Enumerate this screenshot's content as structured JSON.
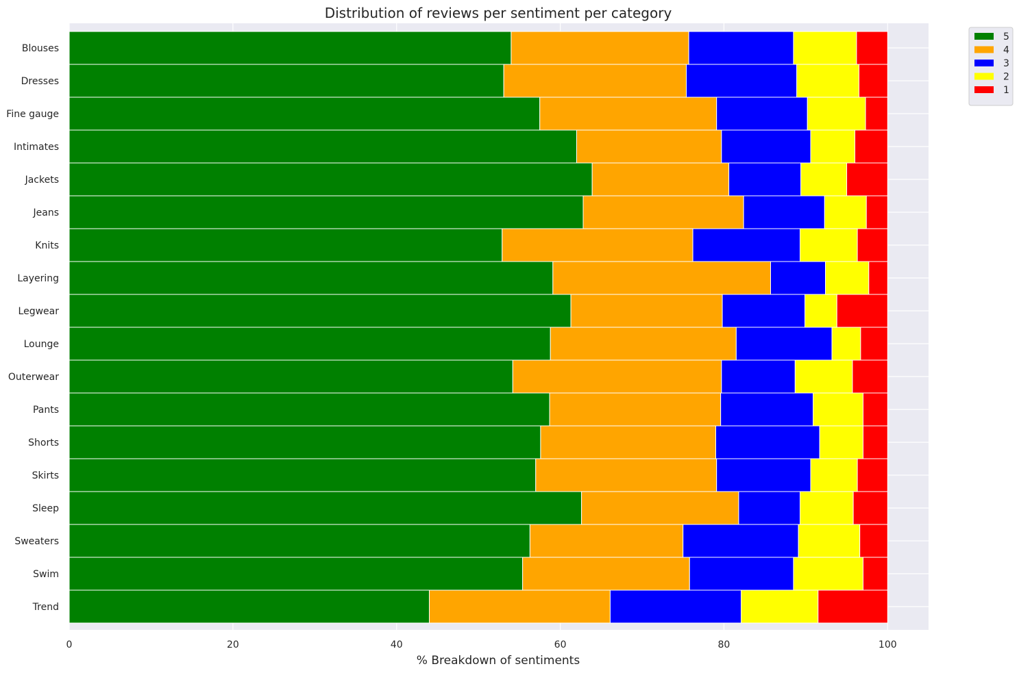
{
  "chart_data": {
    "type": "bar",
    "orientation": "horizontal",
    "stacked": true,
    "title": "Distribution of reviews per sentiment per category",
    "xlabel": "% Breakdown of sentiments",
    "ylabel": "",
    "xlim": [
      0,
      105
    ],
    "xticks": [
      0,
      20,
      40,
      60,
      80,
      100
    ],
    "grid": true,
    "legend_position": "outside-top-right",
    "categories": [
      "Blouses",
      "Dresses",
      "Fine gauge",
      "Intimates",
      "Jackets",
      "Jeans",
      "Knits",
      "Layering",
      "Legwear",
      "Lounge",
      "Outerwear",
      "Pants",
      "Shorts",
      "Skirts",
      "Sleep",
      "Sweaters",
      "Swim",
      "Trend"
    ],
    "series": [
      {
        "name": "5",
        "color": "#008000",
        "values": [
          54.0,
          53.1,
          57.5,
          62.0,
          63.9,
          62.8,
          52.9,
          59.1,
          61.3,
          58.8,
          54.2,
          58.7,
          57.6,
          57.0,
          62.6,
          56.3,
          55.4,
          44.0
        ]
      },
      {
        "name": "4",
        "color": "#ffa500",
        "values": [
          21.7,
          22.3,
          21.6,
          17.7,
          16.7,
          19.6,
          23.3,
          26.6,
          18.5,
          22.7,
          25.5,
          20.9,
          21.4,
          22.1,
          19.2,
          18.7,
          20.4,
          22.1
        ]
      },
      {
        "name": "3",
        "color": "#0000ff",
        "values": [
          12.8,
          13.5,
          11.1,
          10.9,
          8.8,
          9.9,
          13.1,
          6.7,
          10.1,
          11.7,
          9.0,
          11.3,
          12.7,
          11.5,
          7.5,
          14.1,
          12.7,
          16.0
        ]
      },
      {
        "name": "2",
        "color": "#ffff00",
        "values": [
          7.7,
          7.6,
          7.1,
          5.4,
          5.6,
          5.1,
          7.0,
          5.3,
          3.9,
          3.5,
          7.0,
          6.1,
          5.3,
          5.7,
          6.5,
          7.5,
          8.5,
          9.4
        ]
      },
      {
        "name": "1",
        "color": "#ff0000",
        "values": [
          3.8,
          3.5,
          2.7,
          4.0,
          5.0,
          2.6,
          3.7,
          2.3,
          6.2,
          3.3,
          4.3,
          3.0,
          3.0,
          3.7,
          4.2,
          3.4,
          3.0,
          8.5
        ]
      }
    ]
  }
}
